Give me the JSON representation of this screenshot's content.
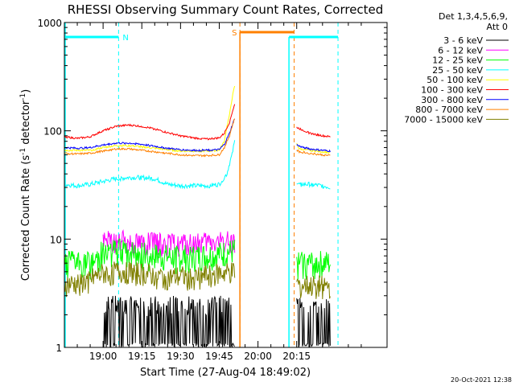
{
  "chart_data": {
    "type": "line",
    "title": "RHESSI Observing Summary Count Rates, Corrected",
    "xlabel": "Start Time (27-Aug-04 18:49:02)",
    "ylabel_main": "Corrected Count Rate (s",
    "ylabel_sup1": "-1",
    "ylabel_mid": " detector",
    "ylabel_sup2": "-1",
    "ylabel_end": ")",
    "yscale": "log",
    "ylim": [
      1,
      1000
    ],
    "xlim_minutes": [
      -15,
      110
    ],
    "x_ticks": [
      {
        "min": 0,
        "label": "19:00"
      },
      {
        "min": 15,
        "label": "19:15"
      },
      {
        "min": 30,
        "label": "19:30"
      },
      {
        "min": 45,
        "label": "19:45"
      },
      {
        "min": 60,
        "label": "20:00"
      },
      {
        "min": 75,
        "label": "20:15"
      }
    ],
    "y_ticks": [
      {
        "value": 1,
        "label": "1"
      },
      {
        "value": 10,
        "label": "10"
      },
      {
        "value": 100,
        "label": "100"
      },
      {
        "value": 1000,
        "label": "1000"
      }
    ],
    "legend_header": [
      "Det 1,3,4,5,6,9,",
      "Att 0"
    ],
    "legend_placement": "right",
    "timestamp": "20-Oct-2021 12:38",
    "flags": [
      {
        "label": "N",
        "color": "#00ffff",
        "segments": [
          [
            -15,
            6
          ],
          [
            72,
            91
          ]
        ]
      },
      {
        "label": "S",
        "color": "#ff8000",
        "segments": [
          [
            53,
            74
          ]
        ]
      }
    ],
    "night_lines": {
      "color": "#00ffff",
      "x": [
        6,
        91
      ]
    },
    "saa_lines": {
      "color": "#ff8000",
      "x": [
        53,
        74
      ]
    },
    "data_gap": [
      53,
      75
    ],
    "series": [
      {
        "name": "3 - 6 keV",
        "color": "#000000",
        "t": [
          0,
          5,
          10,
          15,
          20,
          25,
          30,
          35,
          40,
          45,
          51,
          76,
          80,
          85,
          88
        ],
        "v": [
          1.5,
          1.6,
          1.6,
          1.5,
          1.5,
          1.5,
          1.4,
          1.4,
          1.4,
          1.5,
          1.6,
          1.5,
          1.4,
          1.4,
          1.4
        ]
      },
      {
        "name": "6 - 12 keV",
        "color": "#ff00ff",
        "t": [
          0,
          5,
          10,
          15,
          20,
          25,
          30,
          35,
          40,
          45,
          51
        ],
        "v": [
          9.5,
          9.6,
          9.6,
          9.4,
          9.2,
          9.0,
          9.0,
          9.0,
          9.2,
          9.4,
          9.8
        ]
      },
      {
        "name": "12 - 25 keV",
        "color": "#00ff00",
        "t": [
          -15,
          -10,
          -5,
          0,
          5,
          10,
          15,
          20,
          25,
          30,
          35,
          40,
          45,
          51,
          76,
          80,
          85,
          88
        ],
        "v": [
          6,
          6,
          6,
          7.5,
          7.8,
          7.6,
          7.2,
          7.0,
          6.8,
          6.8,
          6.8,
          7.0,
          7.2,
          7.8,
          6,
          6,
          6,
          6
        ]
      },
      {
        "name": "25 - 50 keV",
        "color": "#00ffff",
        "t": [
          -15,
          -10,
          -5,
          0,
          5,
          10,
          15,
          20,
          25,
          30,
          35,
          40,
          45,
          48,
          50,
          51,
          76,
          80,
          85,
          88
        ],
        "v": [
          32,
          31,
          32,
          34,
          36,
          37,
          37,
          36,
          32,
          31,
          31,
          31,
          32,
          40,
          60,
          80,
          32,
          32,
          31,
          30
        ]
      },
      {
        "name": "50 - 100 keV",
        "color": "#ffff00",
        "t": [
          -15,
          -10,
          -5,
          0,
          5,
          10,
          15,
          20,
          25,
          30,
          35,
          40,
          45,
          47,
          49,
          51,
          76,
          80,
          85,
          88
        ],
        "v": [
          66,
          66,
          66,
          70,
          73,
          73,
          71,
          69,
          67,
          65,
          65,
          65,
          66,
          80,
          140,
          260,
          68,
          66,
          64,
          63
        ]
      },
      {
        "name": "100 - 300 keV",
        "color": "#ff0000",
        "t": [
          -15,
          -10,
          -5,
          0,
          5,
          10,
          15,
          20,
          25,
          30,
          35,
          40,
          45,
          47,
          49,
          51,
          76,
          80,
          85,
          88
        ],
        "v": [
          88,
          85,
          88,
          100,
          110,
          113,
          110,
          104,
          96,
          90,
          86,
          84,
          86,
          95,
          120,
          175,
          105,
          95,
          90,
          88
        ]
      },
      {
        "name": "300 - 800 keV",
        "color": "#0000ff",
        "t": [
          -15,
          -10,
          -5,
          0,
          5,
          10,
          15,
          20,
          25,
          30,
          35,
          40,
          45,
          47,
          49,
          51,
          76,
          80,
          85,
          88
        ],
        "v": [
          70,
          69,
          70,
          74,
          77,
          77,
          75,
          72,
          69,
          67,
          66,
          66,
          67,
          75,
          95,
          130,
          72,
          68,
          66,
          65
        ]
      },
      {
        "name": "800 - 7000 keV",
        "color": "#ff8000",
        "t": [
          -15,
          -10,
          -5,
          0,
          5,
          10,
          15,
          20,
          25,
          30,
          35,
          40,
          45,
          47,
          49,
          51,
          76,
          80,
          85,
          88
        ],
        "v": [
          62,
          61,
          62,
          65,
          68,
          68,
          66,
          64,
          62,
          60,
          59,
          59,
          60,
          70,
          90,
          130,
          64,
          62,
          60,
          59
        ]
      },
      {
        "name": "7000 - 15000 keV",
        "color": "#808000",
        "t": [
          -15,
          -10,
          -5,
          0,
          5,
          10,
          15,
          20,
          25,
          30,
          35,
          40,
          45,
          51,
          76,
          80,
          85,
          88
        ],
        "v": [
          3.8,
          3.9,
          4.2,
          4.8,
          5.0,
          5.0,
          4.8,
          4.6,
          4.4,
          4.5,
          4.4,
          4.6,
          4.8,
          5.0,
          3.8,
          3.7,
          3.7,
          3.6
        ]
      }
    ]
  }
}
